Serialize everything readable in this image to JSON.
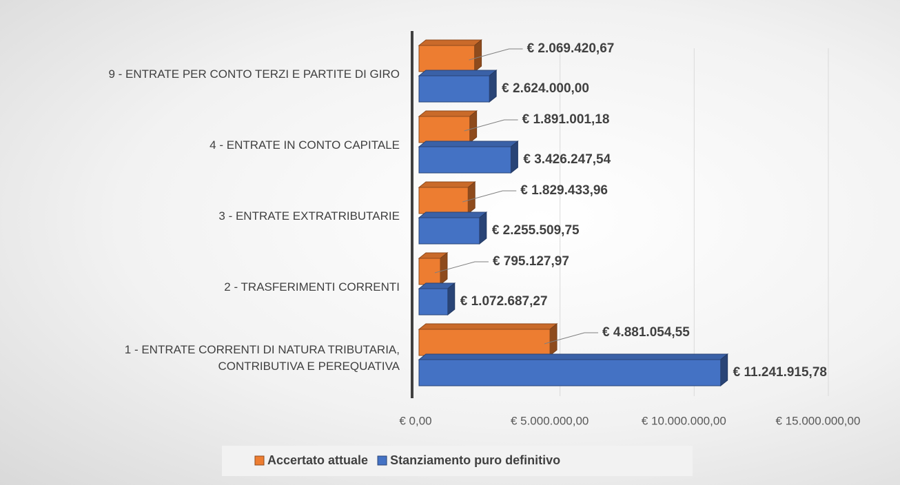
{
  "chart_data": {
    "type": "bar3d-horizontal",
    "categories": [
      "1 - ENTRATE CORRENTI DI NATURA TRIBUTARIA,\nCONTRIBUTIVA E PEREQUATIVA",
      "2 - TRASFERIMENTI CORRENTI",
      "3 - ENTRATE EXTRATRIBUTARIE",
      "4 - ENTRATE IN CONTO CAPITALE",
      "9 - ENTRATE PER CONTO TERZI E PARTITE DI GIRO"
    ],
    "series": [
      {
        "name": "Accertato attuale",
        "color": "#ED7D31",
        "values": [
          4881054.55,
          795127.97,
          1829433.96,
          1891001.18,
          2069420.67
        ],
        "value_labels": [
          "€ 4.881.054,55",
          "€ 795.127,97",
          "€ 1.829.433,96",
          "€ 1.891.001,18",
          "€ 2.069.420,67"
        ]
      },
      {
        "name": "Stanziamento puro definitivo",
        "color": "#4472C4",
        "values": [
          11241915.78,
          1072687.27,
          2255509.75,
          3426247.54,
          2624000.0
        ],
        "value_labels": [
          "€ 11.241.915,78",
          "€ 1.072.687,27",
          "€ 2.255.509,75",
          "€ 3.426.247,54",
          "€ 2.624.000,00"
        ]
      }
    ],
    "xlim": [
      0,
      15000000
    ],
    "xticks": [
      {
        "value": 0,
        "label": "€ 0,00"
      },
      {
        "value": 5000000,
        "label": "€ 5.000.000,00"
      },
      {
        "value": 10000000,
        "label": "€ 10.000.000,00"
      },
      {
        "value": 15000000,
        "label": "€ 15.000.000,00"
      }
    ],
    "grid": true,
    "legend": "bottom"
  }
}
